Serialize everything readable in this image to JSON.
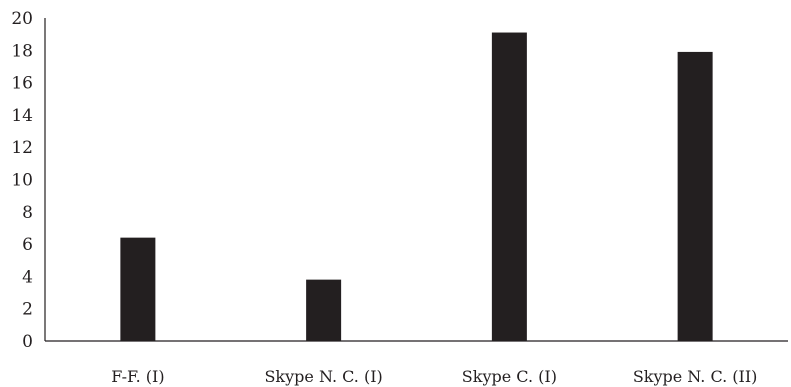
{
  "chart_data": {
    "type": "bar",
    "title": "",
    "xlabel": "",
    "ylabel": "",
    "categories": [
      "F-F. (I)",
      "Skype N. C. (I)",
      "Skype C. (I)",
      "Skype N. C. (II)"
    ],
    "values": [
      6.4,
      3.8,
      19.1,
      17.9
    ],
    "ylim": [
      0,
      20
    ],
    "yticks": [
      0,
      2,
      4,
      6,
      8,
      10,
      12,
      14,
      16,
      18,
      20
    ],
    "grid": false,
    "legend": "none",
    "bar_color": "#231f20",
    "axis_color": "#231f20"
  }
}
